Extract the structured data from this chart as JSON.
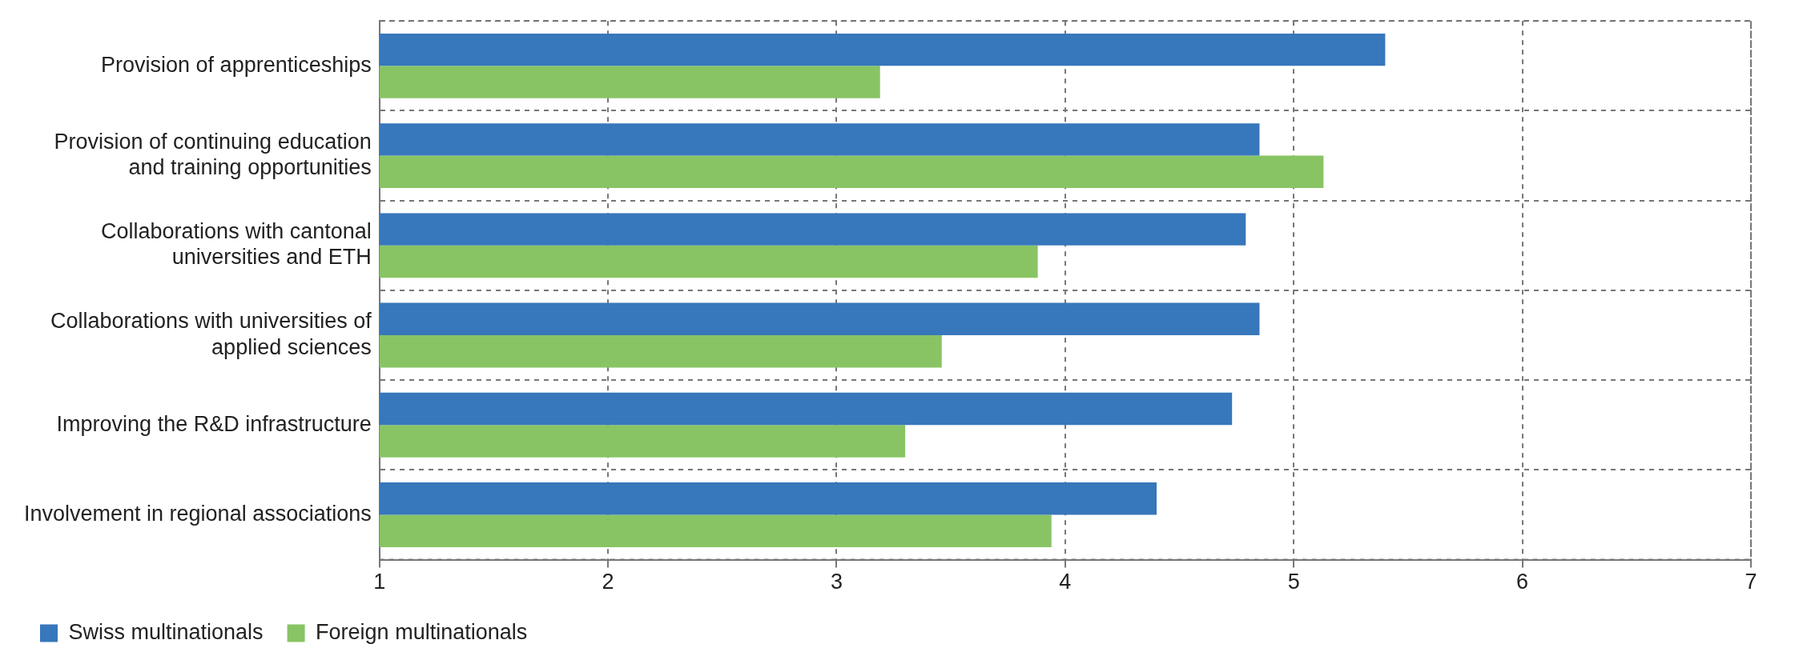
{
  "chart_data": {
    "type": "bar",
    "orientation": "horizontal",
    "categories": [
      "Provision of apprenticeships",
      "Provision of continuing education and training opportunities",
      "Collaborations with cantonal universities and ETH",
      "Collaborations with universities of applied sciences",
      "Improving the R&D infrastructure",
      "Involvement in regional associations"
    ],
    "series": [
      {
        "name": "Swiss multinationals",
        "color": "#3777bb",
        "values": [
          5.4,
          4.85,
          4.79,
          4.85,
          4.73,
          4.4
        ]
      },
      {
        "name": "Foreign multinationals",
        "color": "#88c464",
        "values": [
          3.19,
          5.13,
          3.88,
          3.46,
          3.3,
          3.94
        ]
      }
    ],
    "xlim": [
      1,
      7
    ],
    "xticks": [
      1,
      2,
      3,
      4,
      5,
      6,
      7
    ],
    "grid": true,
    "legend": "bottom left"
  }
}
